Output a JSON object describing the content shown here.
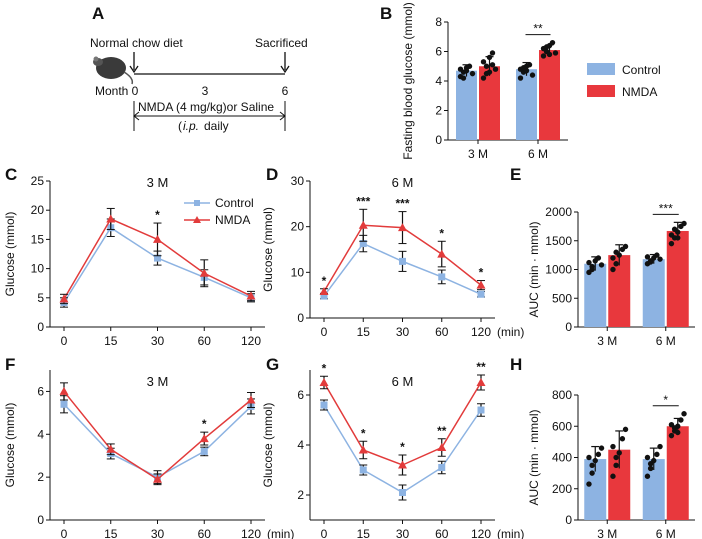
{
  "colors": {
    "control": "#8db3e2",
    "nmda": "#e8383d",
    "control_line": "#8db3e2",
    "nmda_line": "#e23b3b",
    "axis": "#111111"
  },
  "panelA": {
    "letter": "A",
    "diet": "Normal chow diet",
    "sacrificed": "Sacrificed",
    "month_label": "Month",
    "ticks": [
      "0",
      "3",
      "6"
    ],
    "treatment": "NMDA (4 mg/kg)or Saline",
    "route_italic": "i.p.",
    "route_rest": "daily",
    "mouse_icon": "mouse-icon"
  },
  "legend": {
    "control": "Control",
    "nmda": "NMDA"
  },
  "chart_data": [
    {
      "panel": "B",
      "type": "bar",
      "ylabel": "Fasting blood glucose (mmol)",
      "ylim": [
        0,
        8
      ],
      "yticks": [
        0,
        2,
        4,
        6,
        8
      ],
      "categories": [
        "3 M",
        "6 M"
      ],
      "series": [
        {
          "name": "Control",
          "values": [
            4.7,
            4.8
          ],
          "err": [
            0.4,
            0.45
          ],
          "points": [
            [
              4.3,
              4.6,
              4.9,
              5.0,
              4.5,
              4.8,
              4.2,
              4.7
            ],
            [
              4.2,
              4.6,
              5.0,
              5.1,
              4.4,
              4.8,
              4.9,
              4.7
            ]
          ]
        },
        {
          "name": "NMDA",
          "values": [
            5.0,
            6.1
          ],
          "err": [
            0.65,
            0.35
          ],
          "points": [
            [
              4.2,
              4.5,
              5.6,
              5.9,
              4.8,
              5.3,
              5.0,
              4.6,
              5.1
            ],
            [
              5.7,
              6.0,
              6.4,
              6.6,
              5.9,
              6.2,
              6.3,
              5.8
            ]
          ]
        }
      ],
      "significance": [
        {
          "category": "6 M",
          "label": "**"
        }
      ]
    },
    {
      "panel": "C",
      "type": "line",
      "title": "3 M",
      "ylabel": "Glucose (mmol)",
      "ylim": [
        0,
        25
      ],
      "yticks": [
        0,
        5,
        10,
        15,
        20,
        25
      ],
      "x": [
        "0",
        "15",
        "30",
        "60",
        "120"
      ],
      "xunit": "",
      "series": [
        {
          "name": "Control",
          "values": [
            4.2,
            17.0,
            11.8,
            8.5,
            5.0
          ],
          "err": [
            0.8,
            1.5,
            1.2,
            1.3,
            0.7
          ]
        },
        {
          "name": "NMDA",
          "values": [
            4.8,
            18.5,
            15.0,
            9.2,
            5.3
          ],
          "err": [
            0.8,
            1.8,
            2.8,
            2.3,
            0.8
          ]
        }
      ],
      "annotations": [
        {
          "x": "30",
          "label": "*"
        }
      ]
    },
    {
      "panel": "D",
      "type": "line",
      "title": "6 M",
      "ylabel": "Glucose (mmol)",
      "ylim": [
        0,
        30
      ],
      "yticks": [
        0,
        10,
        20,
        30
      ],
      "x": [
        "0",
        "15",
        "30",
        "60",
        "120"
      ],
      "xunit": "(min)",
      "series": [
        {
          "name": "Control",
          "values": [
            4.8,
            16.3,
            12.4,
            9.0,
            5.2
          ],
          "err": [
            0.6,
            1.8,
            2.2,
            1.5,
            0.6
          ]
        },
        {
          "name": "NMDA",
          "values": [
            5.8,
            20.3,
            19.8,
            14.0,
            7.2
          ],
          "err": [
            0.6,
            3.5,
            3.5,
            2.8,
            1.0
          ]
        }
      ],
      "annotations": [
        {
          "x": "0",
          "label": "*"
        },
        {
          "x": "15",
          "label": "***"
        },
        {
          "x": "30",
          "label": "***"
        },
        {
          "x": "60",
          "label": "*"
        },
        {
          "x": "120",
          "label": "*"
        }
      ]
    },
    {
      "panel": "E",
      "type": "bar",
      "ylabel": "AUC (min · mmol)",
      "ylim": [
        0,
        2000
      ],
      "yticks": [
        0,
        500,
        1000,
        1500,
        2000
      ],
      "categories": [
        "3 M",
        "6 M"
      ],
      "series": [
        {
          "name": "Control",
          "values": [
            1100,
            1180
          ],
          "err": [
            120,
            80
          ],
          "points": [
            [
              950,
              1050,
              1150,
              1200,
              1080,
              1120,
              1000
            ],
            [
              1100,
              1150,
              1200,
              1250,
              1180,
              1220,
              1130
            ]
          ]
        },
        {
          "name": "NMDA",
          "values": [
            1250,
            1670
          ],
          "err": [
            180,
            150
          ],
          "points": [
            [
              1000,
              1100,
              1250,
              1350,
              1400,
              1200,
              1300
            ],
            [
              1450,
              1550,
              1650,
              1750,
              1800,
              1600,
              1700,
              1550
            ]
          ]
        }
      ],
      "significance": [
        {
          "category": "6 M",
          "label": "***"
        }
      ]
    },
    {
      "panel": "F",
      "type": "line",
      "title": "3 M",
      "ylabel": "Glucose (mmol)",
      "ylim": [
        0,
        7
      ],
      "yticks": [
        0,
        2,
        4,
        6
      ],
      "x": [
        "0",
        "15",
        "30",
        "60",
        "120"
      ],
      "xunit": "(min)",
      "series": [
        {
          "name": "Control",
          "values": [
            5.4,
            3.1,
            2.0,
            3.2,
            5.3
          ],
          "err": [
            0.4,
            0.25,
            0.3,
            0.2,
            0.35
          ]
        },
        {
          "name": "NMDA",
          "values": [
            6.0,
            3.3,
            1.9,
            3.8,
            5.6
          ],
          "err": [
            0.4,
            0.25,
            0.25,
            0.3,
            0.35
          ]
        }
      ],
      "annotations": [
        {
          "x": "60",
          "label": "*"
        }
      ]
    },
    {
      "panel": "G",
      "type": "line",
      "title": "6 M",
      "ylabel": "Glucose (mmol)",
      "ylim": [
        1,
        7
      ],
      "yticks": [
        2,
        4,
        6
      ],
      "x": [
        "0",
        "15",
        "30",
        "60",
        "120"
      ],
      "xunit": "(min)",
      "series": [
        {
          "name": "Control",
          "values": [
            5.6,
            3.0,
            2.1,
            3.1,
            5.4
          ],
          "err": [
            0.2,
            0.2,
            0.3,
            0.25,
            0.25
          ]
        },
        {
          "name": "NMDA",
          "values": [
            6.5,
            3.8,
            3.2,
            3.9,
            6.5
          ],
          "err": [
            0.25,
            0.35,
            0.4,
            0.35,
            0.3
          ]
        }
      ],
      "annotations": [
        {
          "x": "0",
          "label": "*"
        },
        {
          "x": "15",
          "label": "*"
        },
        {
          "x": "30",
          "label": "*"
        },
        {
          "x": "60",
          "label": "**"
        },
        {
          "x": "120",
          "label": "**"
        }
      ]
    },
    {
      "panel": "H",
      "type": "bar",
      "ylabel": "AUC (min · mmol)",
      "ylim": [
        0,
        800
      ],
      "yticks": [
        0,
        200,
        400,
        600,
        800
      ],
      "categories": [
        "3 M",
        "6 M"
      ],
      "series": [
        {
          "name": "Control",
          "values": [
            390,
            390
          ],
          "err": [
            80,
            70
          ],
          "points": [
            [
              230,
              300,
              380,
              420,
              460,
              400,
              350
            ],
            [
              280,
              330,
              380,
              420,
              470,
              400,
              360
            ]
          ]
        },
        {
          "name": "NMDA",
          "values": [
            450,
            600
          ],
          "err": [
            120,
            50
          ],
          "points": [
            [
              280,
              350,
              430,
              520,
              580,
              470,
              400
            ],
            [
              540,
              570,
              600,
              640,
              680,
              610,
              590,
              560
            ]
          ]
        }
      ],
      "significance": [
        {
          "category": "6 M",
          "label": "*"
        }
      ]
    }
  ]
}
